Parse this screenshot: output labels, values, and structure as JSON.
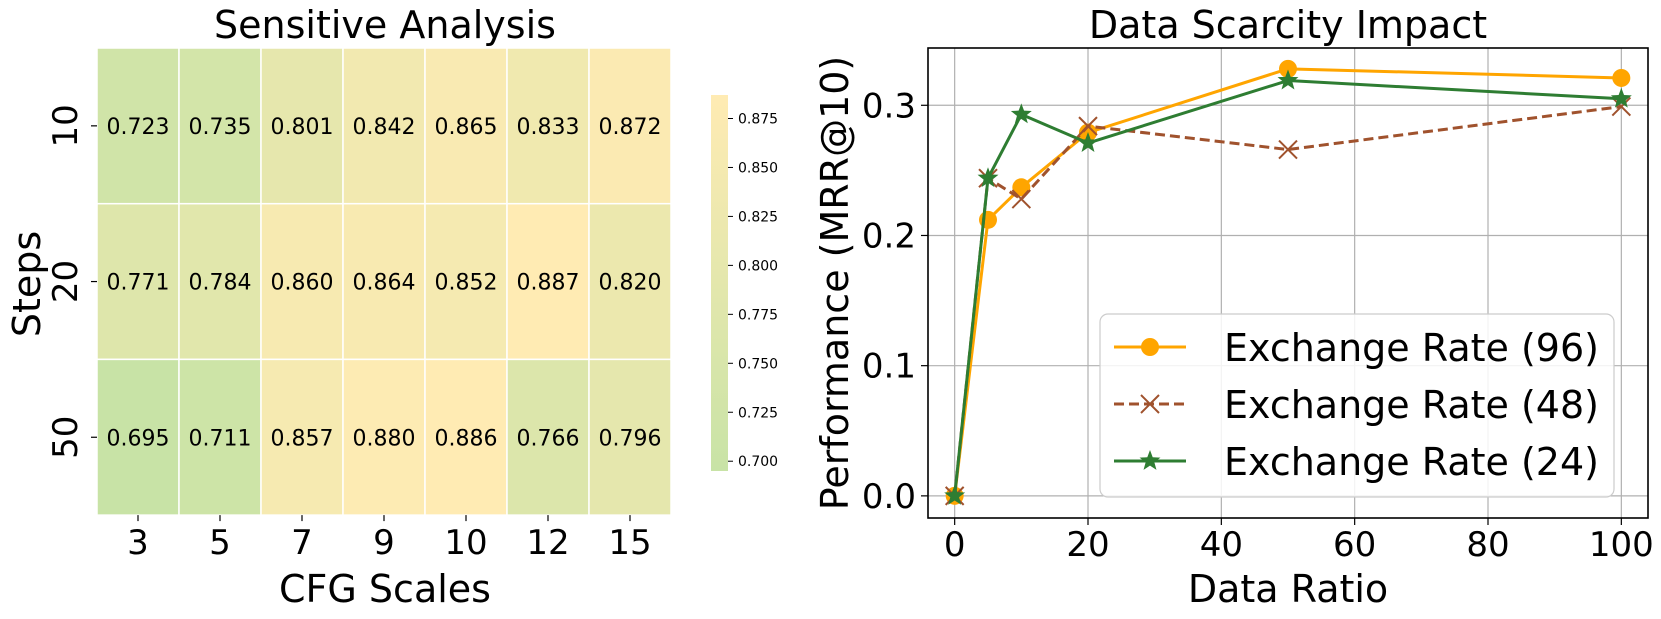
{
  "chart_data": [
    {
      "type": "heatmap",
      "title": "Sensitive Analysis",
      "xlabel": "CFG Scales",
      "ylabel": "Steps",
      "x_categories": [
        "3",
        "5",
        "7",
        "9",
        "10",
        "12",
        "15"
      ],
      "y_categories": [
        "10",
        "20",
        "50"
      ],
      "values": [
        [
          0.723,
          0.735,
          0.801,
          0.842,
          0.865,
          0.833,
          0.872
        ],
        [
          0.771,
          0.784,
          0.86,
          0.864,
          0.852,
          0.887,
          0.82
        ],
        [
          0.695,
          0.711,
          0.857,
          0.88,
          0.886,
          0.766,
          0.796
        ]
      ],
      "value_labels": [
        [
          "0.723",
          "0.735",
          "0.801",
          "0.842",
          "0.865",
          "0.833",
          "0.872"
        ],
        [
          "0.771",
          "0.784",
          "0.860",
          "0.864",
          "0.852",
          "0.887",
          "0.820"
        ],
        [
          "0.695",
          "0.711",
          "0.857",
          "0.880",
          "0.886",
          "0.766",
          "0.796"
        ]
      ],
      "colorbar": {
        "range": [
          0.695,
          0.887
        ],
        "ticks": [
          0.7,
          0.725,
          0.75,
          0.775,
          0.8,
          0.825,
          0.85,
          0.875
        ],
        "tick_labels": [
          "0.700",
          "0.725",
          "0.750",
          "0.775",
          "0.800",
          "0.825",
          "0.850",
          "0.875"
        ],
        "color_low": "#c8e3a6",
        "color_high": "#ffebb3"
      }
    },
    {
      "type": "line",
      "title": "Data Scarcity Impact",
      "xlabel": "Data Ratio",
      "ylabel": "Performance (MRR@10)",
      "xlim": [
        -4,
        104
      ],
      "ylim": [
        -0.017,
        0.344
      ],
      "xticks": [
        0,
        20,
        40,
        60,
        80,
        100
      ],
      "xtick_labels": [
        "0",
        "20",
        "40",
        "60",
        "80",
        "100"
      ],
      "yticks": [
        0.0,
        0.1,
        0.2,
        0.3
      ],
      "ytick_labels": [
        "0.0",
        "0.1",
        "0.2",
        "0.3"
      ],
      "grid": true,
      "legend_position": "lower-right",
      "x": [
        0,
        5,
        10,
        20,
        50,
        100
      ],
      "series": [
        {
          "name": "Exchange Rate (96)",
          "values": [
            0.0,
            0.212,
            0.237,
            0.279,
            0.328,
            0.321
          ],
          "color": "#ffa500",
          "marker": "circle",
          "style": "solid"
        },
        {
          "name": "Exchange Rate (48)",
          "values": [
            0.0,
            0.244,
            0.228,
            0.284,
            0.266,
            0.299
          ],
          "color": "#a0522d",
          "marker": "x",
          "style": "dashed"
        },
        {
          "name": "Exchange Rate (24)",
          "values": [
            0.0,
            0.244,
            0.293,
            0.271,
            0.319,
            0.305
          ],
          "color": "#2e7d32",
          "marker": "star",
          "style": "solid"
        }
      ]
    }
  ]
}
